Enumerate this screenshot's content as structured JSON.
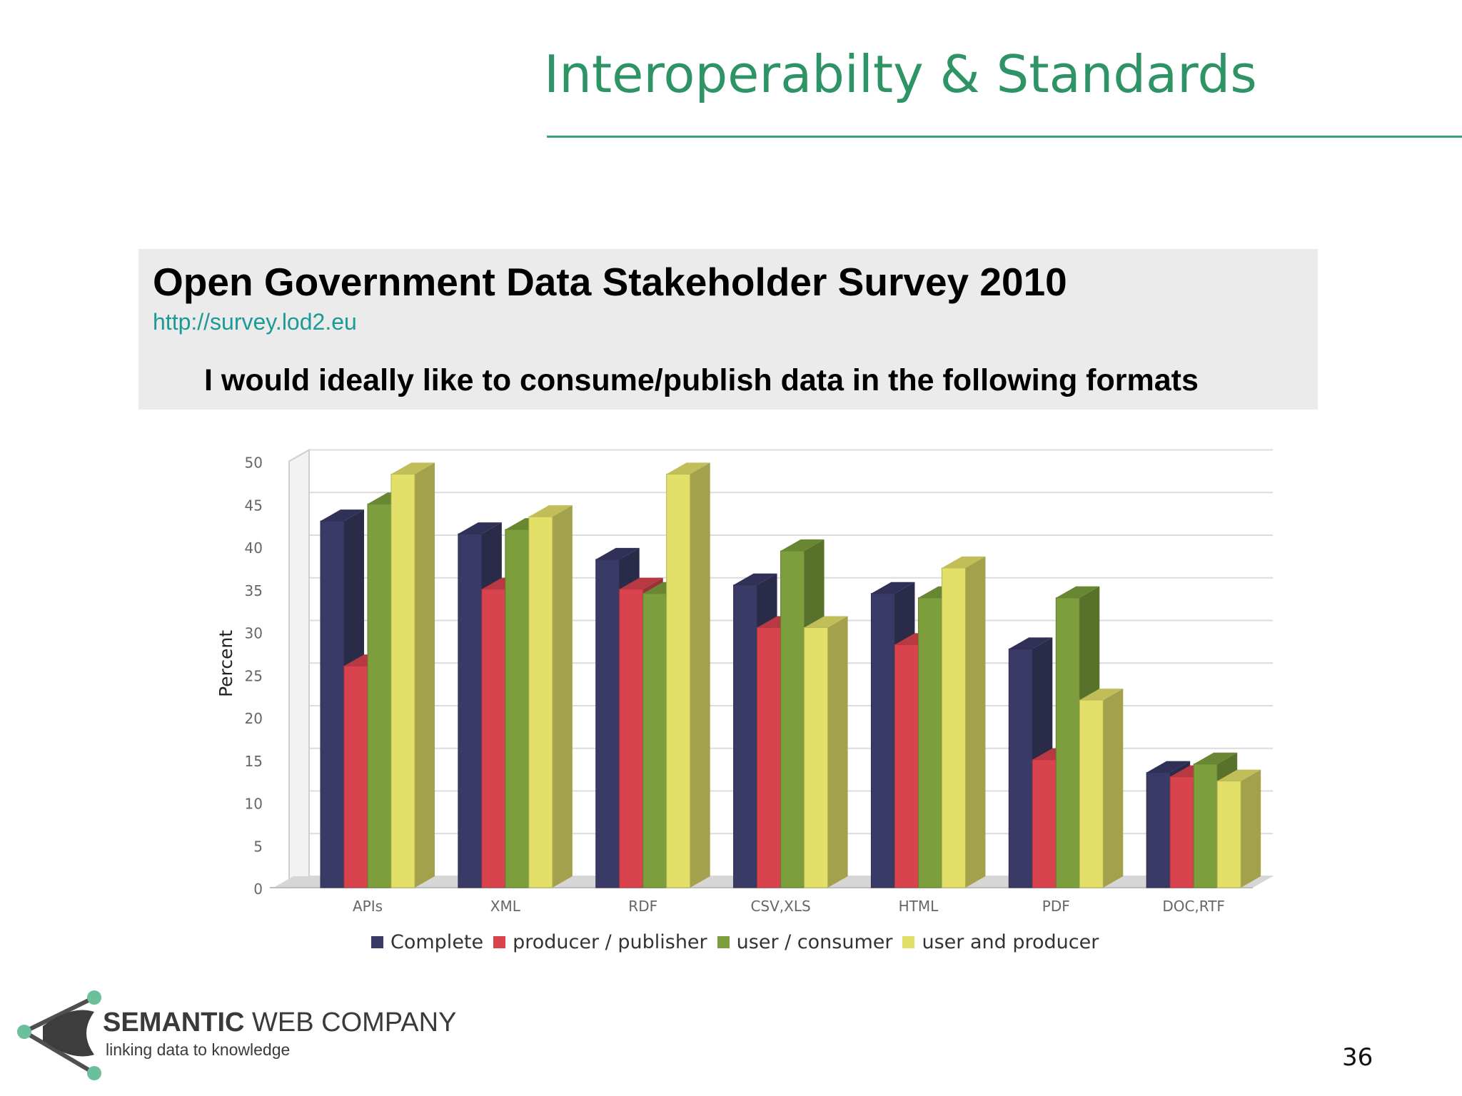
{
  "slide": {
    "title": "Interoperabilty & Standards",
    "page_number": "36"
  },
  "survey": {
    "title": "Open Government Data Stakeholder Survey 2010",
    "url": "http://survey.lod2.eu",
    "question": "I would ideally like to consume/publish data in the following formats"
  },
  "logo": {
    "name_bold": "SEMANTIC",
    "name_rest": " WEB COMPANY",
    "tagline": "linking data to knowledge"
  },
  "chart_data": {
    "type": "bar",
    "title": "",
    "xlabel": "",
    "ylabel": "Percent",
    "ylim": [
      0,
      50
    ],
    "yticks": [
      0,
      5,
      10,
      15,
      20,
      25,
      30,
      35,
      40,
      45,
      50
    ],
    "grid": true,
    "legend_position": "bottom",
    "categories": [
      "APIs",
      "XML",
      "RDF",
      "CSV,XLS",
      "HTML",
      "PDF",
      "DOC,RTF"
    ],
    "series": [
      {
        "name": "Complete",
        "color": "#3a3a66",
        "values": [
          43,
          41.5,
          38.5,
          35.5,
          34.5,
          28,
          13.5
        ]
      },
      {
        "name": "producer / publisher",
        "color": "#d9434e",
        "values": [
          26,
          35,
          35,
          30.5,
          28.5,
          15,
          13
        ]
      },
      {
        "name": "user / consumer",
        "color": "#7c9e3c",
        "values": [
          45,
          42,
          34.5,
          39.5,
          34,
          34,
          14.5
        ]
      },
      {
        "name": "user and producer",
        "color": "#e3e06a",
        "values": [
          48.5,
          43.5,
          48.5,
          30.5,
          37.5,
          22,
          12.5
        ]
      }
    ]
  }
}
